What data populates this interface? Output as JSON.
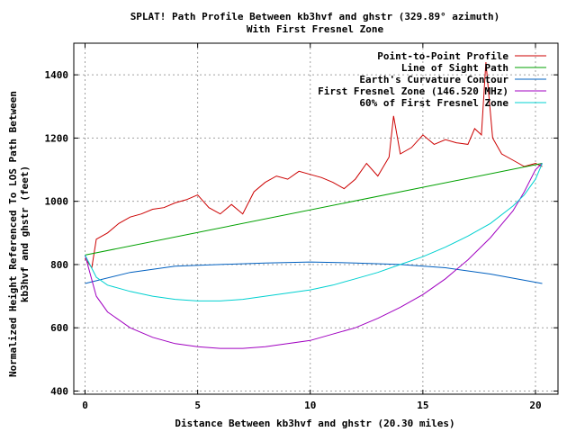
{
  "chart_data": {
    "type": "line",
    "title": "SPLAT! Path Profile Between kb3hvf and ghstr (329.89° azimuth)",
    "subtitle": "With First Fresnel Zone",
    "xlabel": "Distance Between kb3hvf and ghstr (20.30 miles)",
    "ylabel": "Normalized Height Referenced To LOS Path Between",
    "ylabel2": "kb3hvf and ghstr (feet)",
    "xlim": [
      -0.5,
      21
    ],
    "ylim": [
      390,
      1500
    ],
    "xticks": [
      0,
      5,
      10,
      15,
      20
    ],
    "xtick_labels": [
      "0",
      "5",
      "10",
      "15",
      "20"
    ],
    "yticks": [
      400,
      600,
      800,
      1000,
      1200,
      1400
    ],
    "ytick_labels": [
      "400",
      "600",
      "800",
      "1000",
      "1200",
      "1400"
    ],
    "grid": true,
    "legend_position": "top-right",
    "series": [
      {
        "name": "Point-to-Point Profile",
        "color": "#cc0000",
        "x": [
          0,
          0.3,
          0.5,
          1,
          1.5,
          2,
          2.5,
          3,
          3.5,
          4,
          4.5,
          5,
          5.5,
          6,
          6.5,
          7,
          7.5,
          8,
          8.5,
          9,
          9.5,
          10,
          10.5,
          11,
          11.5,
          12,
          12.5,
          13,
          13.5,
          13.7,
          14,
          14.5,
          15,
          15.5,
          16,
          16.5,
          17,
          17.3,
          17.6,
          17.8,
          18.1,
          18.5,
          19,
          19.5,
          20,
          20.3
        ],
        "y": [
          820,
          790,
          880,
          900,
          930,
          950,
          960,
          975,
          980,
          995,
          1005,
          1020,
          980,
          960,
          990,
          960,
          1030,
          1060,
          1080,
          1070,
          1095,
          1085,
          1075,
          1060,
          1040,
          1070,
          1120,
          1080,
          1140,
          1270,
          1150,
          1170,
          1210,
          1180,
          1195,
          1185,
          1180,
          1230,
          1210,
          1440,
          1200,
          1150,
          1130,
          1110,
          1120,
          1110
        ]
      },
      {
        "name": "Line of Sight Path",
        "color": "#00a000",
        "x": [
          0,
          20.3
        ],
        "y": [
          830,
          1120
        ]
      },
      {
        "name": "Earth's Curvature Contour",
        "color": "#0060c0",
        "x": [
          0,
          2,
          4,
          6,
          8,
          10,
          12,
          14,
          16,
          18,
          20.3
        ],
        "y": [
          740,
          775,
          795,
          800,
          805,
          808,
          805,
          800,
          790,
          770,
          740
        ]
      },
      {
        "name": "First Fresnel Zone (146.520 MHz)",
        "color": "#a000c0",
        "x": [
          0,
          0.5,
          1,
          2,
          3,
          4,
          5,
          6,
          7,
          8,
          9,
          10,
          11,
          12,
          13,
          14,
          15,
          16,
          17,
          18,
          19,
          19.5,
          20,
          20.3
        ],
        "y": [
          830,
          700,
          650,
          600,
          570,
          550,
          540,
          535,
          535,
          540,
          550,
          560,
          580,
          600,
          630,
          665,
          705,
          755,
          815,
          885,
          970,
          1030,
          1100,
          1120
        ]
      },
      {
        "name": "60% of First Fresnel Zone",
        "color": "#00d0d0",
        "x": [
          0,
          0.5,
          1,
          2,
          3,
          4,
          5,
          6,
          7,
          8,
          9,
          10,
          11,
          12,
          13,
          14,
          15,
          16,
          17,
          18,
          19,
          19.5,
          20,
          20.3
        ],
        "y": [
          830,
          760,
          735,
          715,
          700,
          690,
          685,
          685,
          690,
          700,
          710,
          720,
          735,
          755,
          775,
          800,
          825,
          855,
          890,
          930,
          985,
          1020,
          1070,
          1120
        ]
      }
    ]
  }
}
